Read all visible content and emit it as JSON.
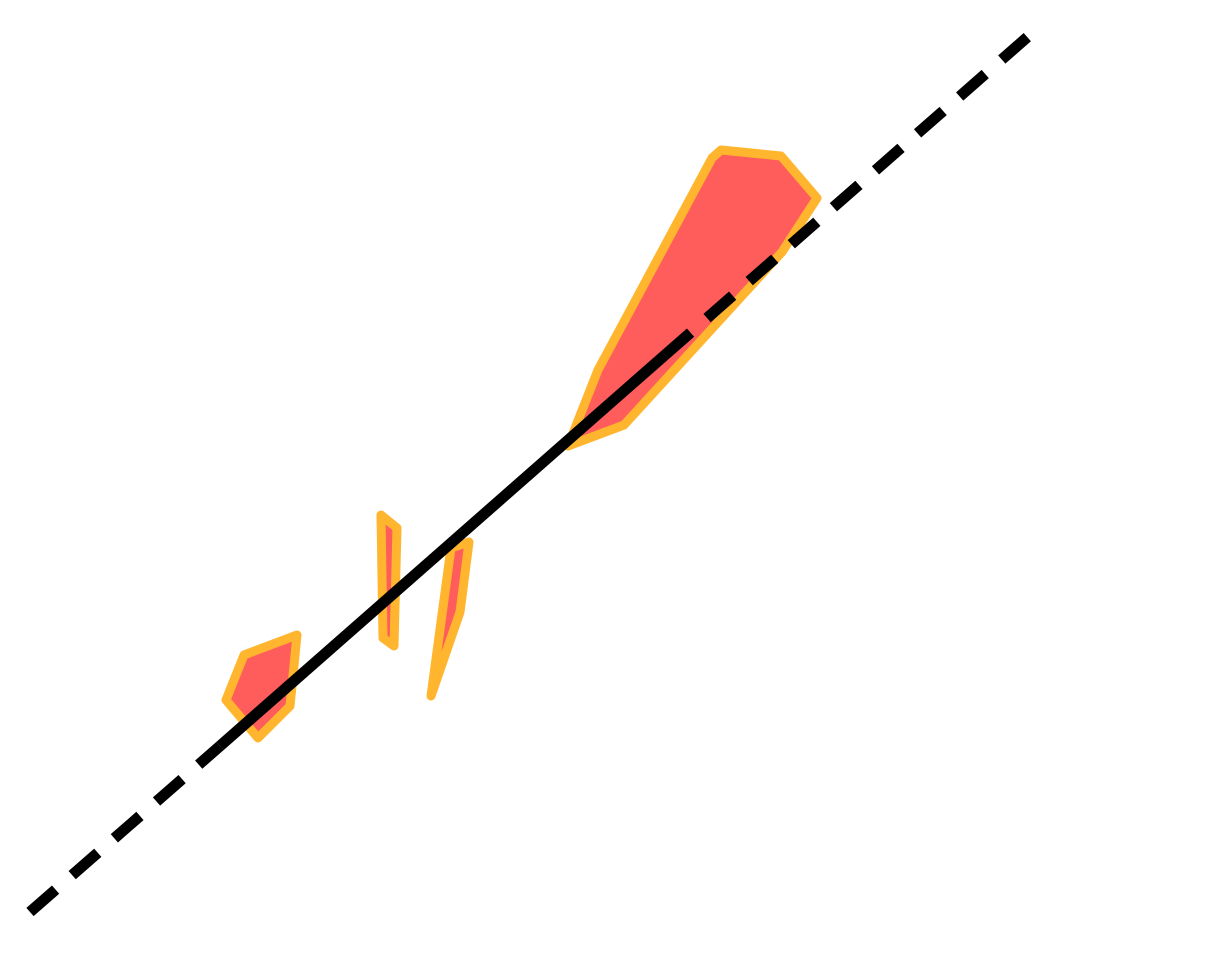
{
  "diagram": {
    "background_color": "#ffffff",
    "region_fill_color": "#ff5c5c",
    "region_stroke_color": "#ffb52e",
    "line_color": "#000000",
    "line_style_outer": "dashed",
    "line_style_inner": "solid",
    "region_count": 4
  }
}
